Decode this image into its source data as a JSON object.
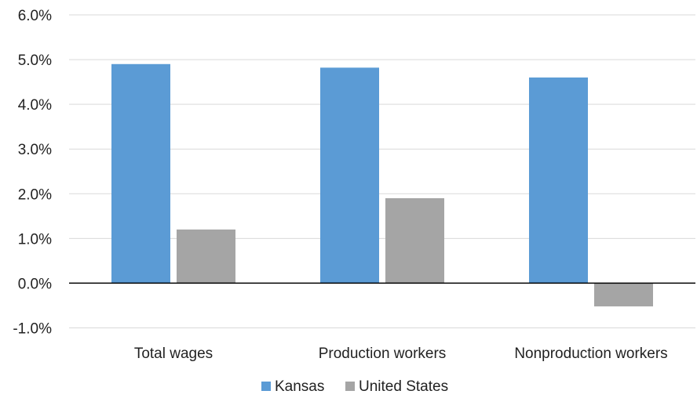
{
  "chart_data": {
    "type": "bar",
    "categories": [
      "Total wages",
      "Production workers",
      "Nonproduction workers"
    ],
    "series": [
      {
        "name": "Kansas",
        "values": [
          4.9,
          4.82,
          4.6
        ],
        "color": "#5b9bd5"
      },
      {
        "name": "United States",
        "values": [
          1.2,
          1.9,
          -0.52
        ],
        "color": "#a5a5a5"
      }
    ],
    "yticks": [
      "6.0%",
      "5.0%",
      "4.0%",
      "3.0%",
      "2.0%",
      "1.0%",
      "0.0%",
      "-1.0%"
    ],
    "ylim": [
      -1.0,
      6.0
    ],
    "grid": true,
    "legend_position": "bottom",
    "unit": "%"
  }
}
